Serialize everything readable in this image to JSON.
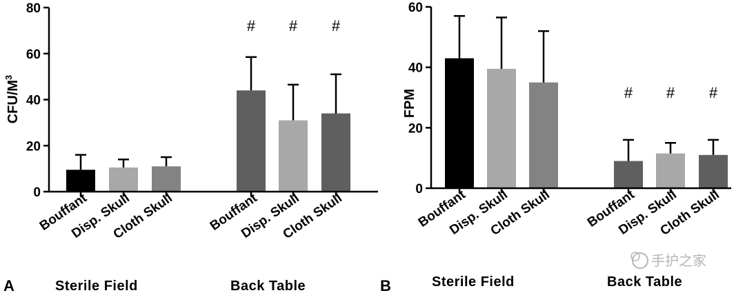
{
  "watermark": "手护之家",
  "chart_data": [
    {
      "type": "bar",
      "panel": "A",
      "ylabel": "CFU/M",
      "ylabel_sup": "3",
      "ylim": [
        0,
        80
      ],
      "yticks": [
        0,
        20,
        40,
        60,
        80
      ],
      "categories": [
        "Bouffant",
        "Disp. Skull",
        "Cloth Skull",
        "Bouffant",
        "Disp. Skull",
        "Cloth Skull"
      ],
      "groups": [
        {
          "label": "Sterile  Field",
          "indices": [
            0,
            1,
            2
          ]
        },
        {
          "label": "Back  Table",
          "indices": [
            3,
            4,
            5
          ]
        }
      ],
      "values": [
        9.5,
        10.5,
        11,
        44,
        31,
        34
      ],
      "errors": [
        6.5,
        3.5,
        4,
        14.5,
        15.5,
        17
      ],
      "significance": [
        "",
        "",
        "",
        "#",
        "#",
        "#"
      ],
      "colors": [
        "#000000",
        "#a8a8a8",
        "#838383",
        "#5f5f5f",
        "#a8a8a8",
        "#5f5f5f"
      ]
    },
    {
      "type": "bar",
      "panel": "B",
      "ylabel": "FPM",
      "ylabel_sup": "",
      "ylim": [
        0,
        60
      ],
      "yticks": [
        0,
        20,
        40,
        60
      ],
      "categories": [
        "Bouffant",
        "Disp. Skull",
        "Cloth Skull",
        "Bouffant",
        "Disp. Skull",
        "Cloth Skull"
      ],
      "groups": [
        {
          "label": "Sterile  Field",
          "indices": [
            0,
            1,
            2
          ]
        },
        {
          "label": "Back  Table",
          "indices": [
            3,
            4,
            5
          ]
        }
      ],
      "values": [
        43,
        39.5,
        35,
        9,
        11.5,
        11
      ],
      "errors": [
        14,
        17,
        17,
        7,
        3.5,
        5
      ],
      "significance": [
        "",
        "",
        "",
        "#",
        "#",
        "#"
      ],
      "colors": [
        "#000000",
        "#a8a8a8",
        "#838383",
        "#5f5f5f",
        "#a8a8a8",
        "#5f5f5f"
      ]
    }
  ]
}
